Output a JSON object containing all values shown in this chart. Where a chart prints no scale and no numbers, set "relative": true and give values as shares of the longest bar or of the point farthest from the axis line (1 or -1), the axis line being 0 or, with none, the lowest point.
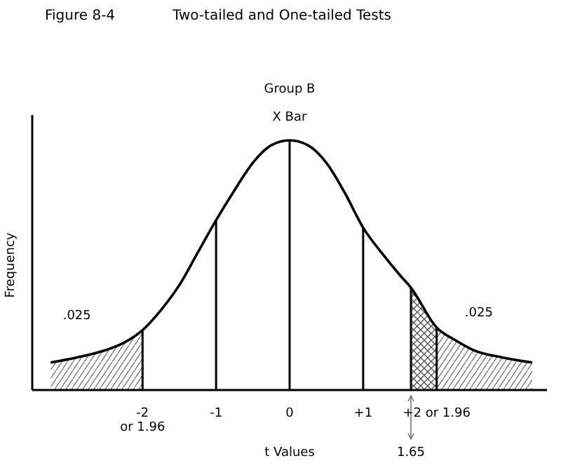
{
  "chart_data": {
    "type": "line",
    "title": "Two-tailed and One-tailed Tests",
    "subtitle": "Figure 8-4",
    "xlabel": "t Values",
    "ylabel": "Frequency",
    "relative": true,
    "tick_labels": "x",
    "line_style": "solid",
    "color": "#000000",
    "x": [
      -3.25,
      -2.9,
      -2.5,
      -2.25,
      -2,
      -1.75,
      -1.5,
      -1.25,
      -1,
      -0.75,
      -0.5,
      -0.25,
      0,
      0.25,
      0.5,
      0.75,
      1,
      1.25,
      1.5,
      1.65,
      2,
      2.25,
      2.5,
      2.9,
      3.3
    ],
    "values": [
      0.11,
      0.13,
      0.16,
      0.19,
      0.24,
      0.32,
      0.42,
      0.55,
      0.68,
      0.8,
      0.91,
      0.98,
      1,
      0.98,
      0.91,
      0.79,
      0.65,
      0.55,
      0.46,
      0.41,
      0.25,
      0.2,
      0.16,
      0.13,
      0.11
    ],
    "xlim": [
      -3.5,
      3.5
    ],
    "xticks": [
      {
        "value": -2,
        "label": "-2\nor 1.96"
      },
      -1,
      0,
      {
        "value": 1,
        "label": "+1"
      },
      {
        "value": 2,
        "label": "+2  or 1.96"
      }
    ],
    "ref_lines": [
      {
        "axis": "x",
        "value": -2
      },
      {
        "axis": "x",
        "value": -1
      },
      {
        "axis": "x",
        "value": 0
      },
      {
        "axis": "x",
        "value": 1
      },
      {
        "axis": "x",
        "value": 2
      },
      {
        "axis": "x",
        "value": 1.65,
        "label": "1.65"
      }
    ],
    "bands": [
      {
        "axis": "x",
        "from": -3.25,
        "to": -2,
        "color": "#777777",
        "label": ".025"
      },
      {
        "axis": "x",
        "from": 2,
        "to": 3.3,
        "color": "#777777",
        "label": ".025"
      },
      {
        "axis": "x",
        "from": 1.65,
        "to": 2,
        "color": "#555555"
      }
    ],
    "annotations": [
      "Group B",
      "X Bar"
    ]
  }
}
